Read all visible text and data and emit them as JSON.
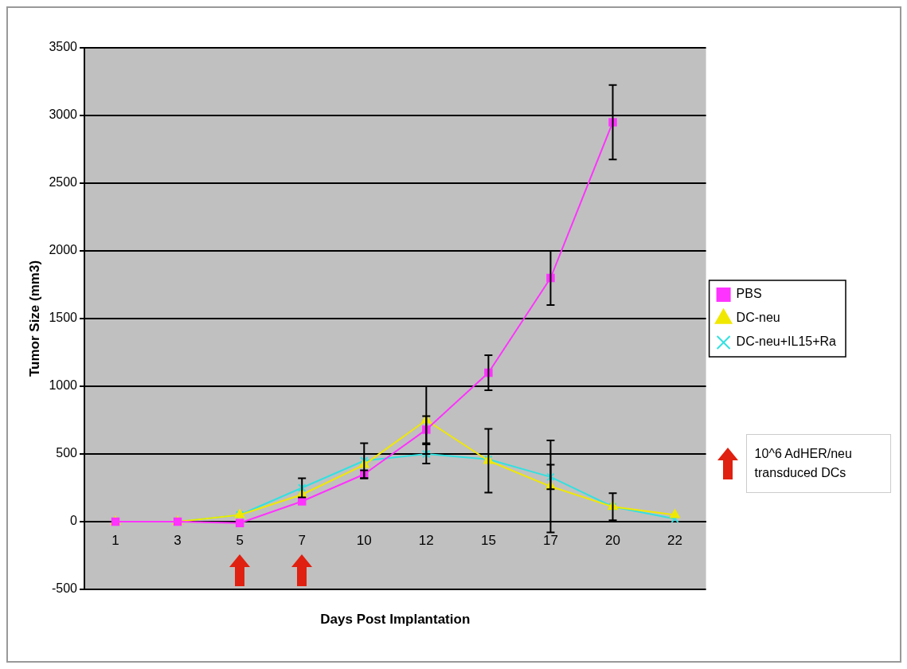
{
  "chart_data": {
    "type": "line",
    "xlabel": "Days Post Implantation",
    "ylabel": "Tumor Size (mm3)",
    "categories": [
      "1",
      "3",
      "5",
      "7",
      "10",
      "12",
      "15",
      "17",
      "20",
      "22"
    ],
    "series": [
      {
        "name": "PBS",
        "color": "#ff33ff",
        "marker": "square",
        "values": [
          0,
          0,
          -10,
          150,
          350,
          680,
          1100,
          1800,
          2950,
          null
        ],
        "errors": [
          null,
          null,
          null,
          null,
          30,
          100,
          130,
          200,
          275,
          null
        ]
      },
      {
        "name": "DC-neu",
        "color": "#f0e800",
        "marker": "triangle",
        "values": [
          0,
          0,
          50,
          200,
          420,
          750,
          450,
          260,
          110,
          50
        ],
        "errors": [
          null,
          null,
          null,
          null,
          null,
          250,
          235,
          340,
          100,
          null
        ]
      },
      {
        "name": "DC-neu+IL15+Ra",
        "color": "#33e0e0",
        "marker": "cross",
        "values": [
          0,
          0,
          50,
          250,
          450,
          500,
          460,
          330,
          110,
          20
        ],
        "errors": [
          null,
          null,
          null,
          70,
          130,
          70,
          null,
          90,
          null,
          null
        ]
      }
    ],
    "ylim": [
      -500,
      3500
    ],
    "yticks": [
      -500,
      0,
      500,
      1000,
      1500,
      2000,
      2500,
      3000,
      3500
    ],
    "grid": "y",
    "legend": "right",
    "line_style": "solid",
    "annotations": [
      "10^6 AdHER/neu transduced DCs"
    ]
  }
}
